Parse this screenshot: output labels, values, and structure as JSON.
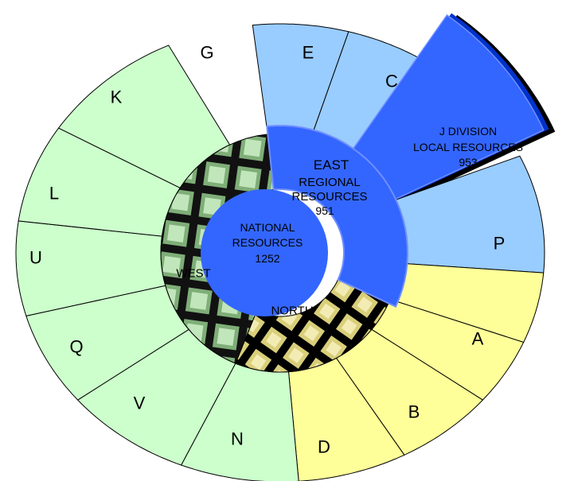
{
  "chart_data": {
    "type": "sunburst",
    "center": {
      "lines": [
        "NATIONAL",
        "RESOURCES"
      ],
      "value": "1252",
      "color": "#3366ff"
    },
    "regions": [
      {
        "name": "EAST",
        "lines": [
          "REGIONAL",
          "RESOURCES"
        ],
        "value": "951",
        "color": "#3366ff",
        "highlighted": true
      },
      {
        "name": "NORTH",
        "color": "#e6e08a",
        "textured": true
      },
      {
        "name": "WEST",
        "color": "#a9d9a0",
        "textured": true
      }
    ],
    "divisions": [
      {
        "label": "E",
        "region": "EAST"
      },
      {
        "label": "C",
        "region": "EAST"
      },
      {
        "label": "J",
        "region": "EAST",
        "exploded": true,
        "lines": [
          "J DIVISION",
          "LOCAL RESOURCES"
        ],
        "value": "953"
      },
      {
        "label": "P",
        "region": "EAST"
      },
      {
        "label": "A",
        "region": "NORTH"
      },
      {
        "label": "B",
        "region": "NORTH"
      },
      {
        "label": "D",
        "region": "NORTH"
      },
      {
        "label": "N",
        "region": "NORTH"
      },
      {
        "label": "V",
        "region": "WEST"
      },
      {
        "label": "Q",
        "region": "WEST"
      },
      {
        "label": "U",
        "region": "WEST"
      },
      {
        "label": "L",
        "region": "WEST"
      },
      {
        "label": "K",
        "region": "WEST"
      },
      {
        "label": "G",
        "region": "WEST"
      }
    ],
    "colors": {
      "east_division": "#99ccff",
      "north_division": "#ffff99",
      "west_division": "#ccffcc",
      "highlight": "#3366ff",
      "shadow": "#000000"
    }
  }
}
